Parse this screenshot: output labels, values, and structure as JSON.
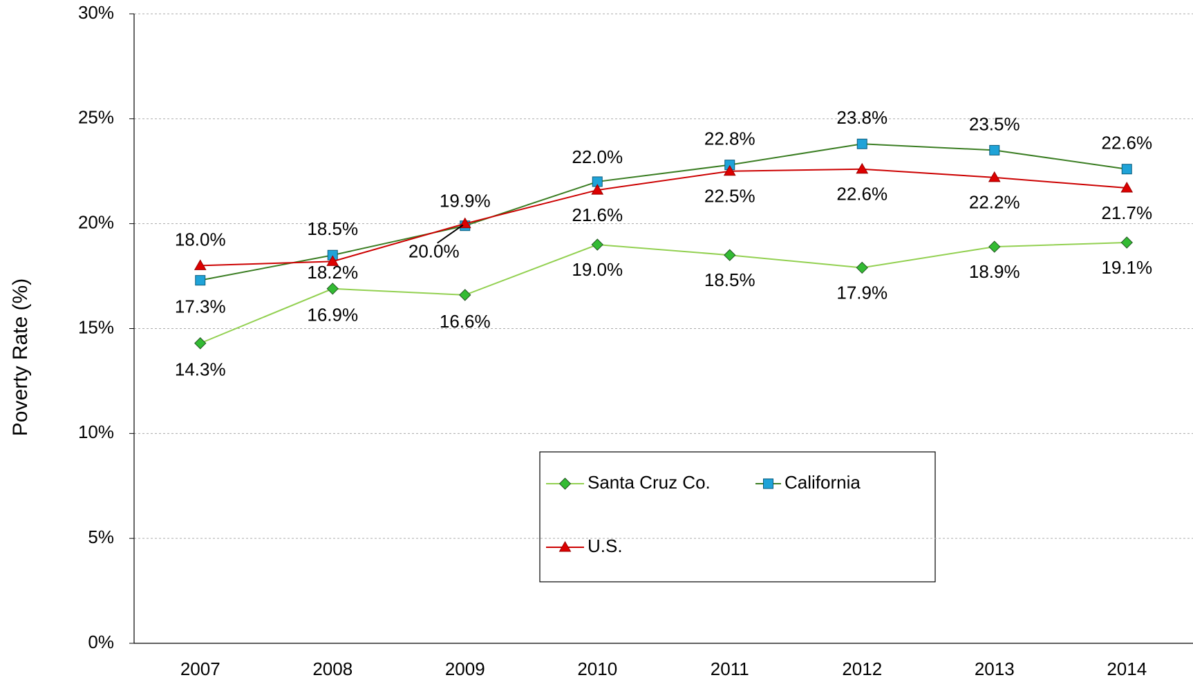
{
  "chart_data": {
    "type": "line",
    "y_label": "Poverty Rate (%)",
    "categories": [
      "2007",
      "2008",
      "2009",
      "2010",
      "2011",
      "2012",
      "2013",
      "2014"
    ],
    "series": [
      {
        "name": "Santa Cruz Co.",
        "color": "#92d050",
        "marker_color": "#33bb33",
        "marker": "diamond",
        "values": [
          14.3,
          16.9,
          16.6,
          19.0,
          18.5,
          17.9,
          18.9,
          19.1
        ],
        "value_labels": [
          "14.3%",
          "16.9%",
          "16.6%",
          "19.0%",
          "18.5%",
          "17.9%",
          "18.9%",
          "19.1%"
        ]
      },
      {
        "name": "California",
        "color": "#3a7d22",
        "marker_color": "#1fa3d8",
        "marker": "square",
        "values": [
          17.3,
          18.5,
          19.9,
          22.0,
          22.8,
          23.8,
          23.5,
          22.6
        ],
        "value_labels": [
          "17.3%",
          "18.5%",
          "19.9%",
          "22.0%",
          "22.8%",
          "23.8%",
          "23.5%",
          "22.6%"
        ]
      },
      {
        "name": "U.S.",
        "color": "#cc0000",
        "marker_color": "#dd0000",
        "marker": "triangle",
        "values": [
          18.0,
          18.2,
          20.0,
          21.6,
          22.5,
          22.6,
          22.2,
          21.7
        ],
        "value_labels": [
          "18.0%",
          "18.2%",
          "20.0%",
          "21.6%",
          "22.5%",
          "22.6%",
          "22.2%",
          "21.7%"
        ]
      }
    ],
    "ylim": [
      0,
      30
    ],
    "yticks": [
      {
        "value": 0,
        "label": "0%"
      },
      {
        "value": 5,
        "label": "5%"
      },
      {
        "value": 10,
        "label": "10%"
      },
      {
        "value": 15,
        "label": "15%"
      },
      {
        "value": 20,
        "label": "20%"
      },
      {
        "value": 25,
        "label": "25%"
      },
      {
        "value": 30,
        "label": "30%"
      }
    ],
    "grid": true
  }
}
